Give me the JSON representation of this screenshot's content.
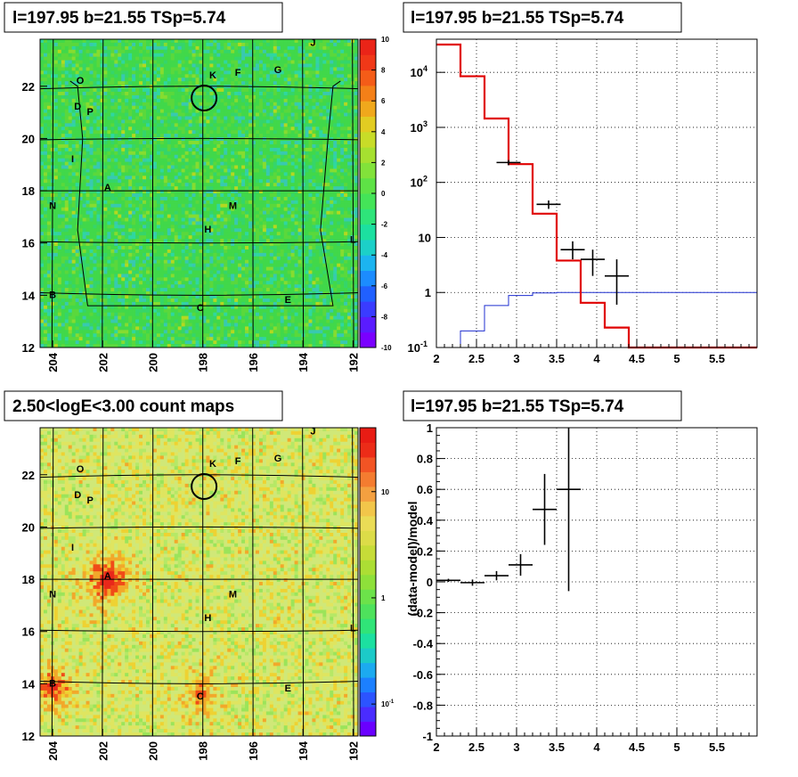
{
  "colors": {
    "map_green": "#3fd64a",
    "count_map": "#d7e86a",
    "model_line": "#e00000",
    "data_points": "#000000",
    "bkg_line": "#1f2fd0",
    "frame": "#000000"
  },
  "panels": {
    "tl": {
      "title": "l=197.95 b=21.55 TSp=5.74",
      "kind": "significance map",
      "xticks": [
        "204",
        "202",
        "200",
        "198",
        "196",
        "194",
        "192"
      ],
      "yticks": [
        "22",
        "20",
        "18",
        "16",
        "14",
        "12"
      ],
      "colorbar_ticks": [
        "10",
        "8",
        "6",
        "4",
        "2",
        "0",
        "-2",
        "-4",
        "-6",
        "-8",
        "-10"
      ],
      "color_scale": "linear"
    },
    "bl": {
      "title": "2.50<logE<3.00 count maps",
      "kind": "count map",
      "xticks": [
        "204",
        "202",
        "200",
        "198",
        "196",
        "194",
        "192"
      ],
      "yticks": [
        "22",
        "20",
        "18",
        "16",
        "14",
        "12"
      ],
      "colorbar_ticks": [
        "10",
        "1",
        "10-1"
      ],
      "color_scale": "log"
    },
    "tr": {
      "title": "l=197.95 b=21.55 TSp=5.74"
    },
    "br": {
      "title": "l=197.95 b=21.55 TSp=5.74",
      "ylabel": "(data-model)/model"
    }
  },
  "sources": [
    {
      "name": "J",
      "l": 193.6,
      "b": 23.55
    },
    {
      "name": "K",
      "l": 197.6,
      "b": 22.3
    },
    {
      "name": "F",
      "l": 196.6,
      "b": 22.4
    },
    {
      "name": "G",
      "l": 195.0,
      "b": 22.5
    },
    {
      "name": "O",
      "l": 202.9,
      "b": 22.1
    },
    {
      "name": "D",
      "l": 203.0,
      "b": 21.1
    },
    {
      "name": "P",
      "l": 202.5,
      "b": 20.9
    },
    {
      "name": "I",
      "l": 203.2,
      "b": 19.1
    },
    {
      "name": "A",
      "l": 201.8,
      "b": 18.0
    },
    {
      "name": "N",
      "l": 204.0,
      "b": 17.3
    },
    {
      "name": "M",
      "l": 196.8,
      "b": 17.3
    },
    {
      "name": "H",
      "l": 197.8,
      "b": 16.4
    },
    {
      "name": "L",
      "l": 192.0,
      "b": 16.0
    },
    {
      "name": "B",
      "l": 204.0,
      "b": 13.9
    },
    {
      "name": "E",
      "l": 194.6,
      "b": 13.7
    },
    {
      "name": "C",
      "l": 198.1,
      "b": 13.4
    }
  ],
  "roi_circle": {
    "l": 197.95,
    "b": 21.55
  },
  "chart_data": [
    {
      "type": "heatmap",
      "title": "l=197.95 b=21.55 TSp=5.74",
      "x_axis": "galactic longitude l (deg), decreasing to the right",
      "xlim": [
        204.5,
        191.8
      ],
      "ylim": [
        12,
        23.8
      ],
      "z_range": [
        -10,
        10
      ]
    },
    {
      "type": "line",
      "title": "l=197.95 b=21.55 TSp=5.74",
      "yscale": "log",
      "xlim": [
        2,
        6
      ],
      "ylim": [
        0.1,
        40000
      ],
      "xticks": [
        "2",
        "2.5",
        "3",
        "3.5",
        "4",
        "4.5",
        "5",
        "5.5"
      ],
      "yticks": [
        "10^4",
        "10^3",
        "10^2",
        "10",
        "1",
        "10^-1"
      ],
      "grid": true,
      "data_points": [
        {
          "x": 2.9,
          "y": 230,
          "xerr": 0.15,
          "ylo": 205,
          "yhi": 255
        },
        {
          "x": 3.4,
          "y": 40,
          "xerr": 0.15,
          "ylo": 33,
          "yhi": 47
        },
        {
          "x": 3.7,
          "y": 6,
          "xerr": 0.15,
          "ylo": 4,
          "yhi": 8.5
        },
        {
          "x": 3.95,
          "y": 4,
          "xerr": 0.15,
          "ylo": 2,
          "yhi": 6
        },
        {
          "x": 4.25,
          "y": 2,
          "xerr": 0.15,
          "ylo": 0.6,
          "yhi": 4
        }
      ],
      "model_hist": {
        "edges": [
          2.0,
          2.3,
          2.6,
          2.9,
          3.2,
          3.5,
          3.8,
          4.1,
          4.4,
          6.0
        ],
        "values": [
          32000,
          8500,
          1450,
          215,
          27,
          3.8,
          0.65,
          0.23,
          0.1
        ]
      },
      "background_hist": {
        "edges": [
          2.3,
          2.6,
          2.9,
          3.2,
          3.5,
          6.0
        ],
        "values": [
          0.2,
          0.58,
          0.88,
          0.98,
          1.0
        ]
      }
    },
    {
      "type": "heatmap",
      "title": "2.50<logE<3.00 count maps",
      "xlim": [
        204.5,
        191.8
      ],
      "ylim": [
        12,
        23.8
      ],
      "z_scale": "log",
      "z_range": [
        0.05,
        40
      ]
    },
    {
      "type": "scatter",
      "title": "l=197.95 b=21.55 TSp=5.74",
      "ylabel": "(data-model)/model",
      "xlim": [
        2,
        6
      ],
      "ylim": [
        -1,
        1
      ],
      "xticks": [
        "2",
        "2.5",
        "3",
        "3.5",
        "4",
        "4.5",
        "5",
        "5.5"
      ],
      "yticks": [
        "1",
        "0.8",
        "0.6",
        "0.4",
        "0.2",
        "0",
        "-0.2",
        "-0.4",
        "-0.6",
        "-0.8",
        "-1"
      ],
      "grid": true,
      "points": [
        {
          "x": 2.15,
          "y": 0.01,
          "xerr": 0.15,
          "yerr": 0.01
        },
        {
          "x": 2.45,
          "y": -0.005,
          "xerr": 0.15,
          "yerr": 0.02
        },
        {
          "x": 2.75,
          "y": 0.04,
          "xerr": 0.15,
          "yerr": 0.03
        },
        {
          "x": 3.05,
          "y": 0.11,
          "xerr": 0.15,
          "yerr": 0.07
        },
        {
          "x": 3.35,
          "y": 0.47,
          "xerr": 0.15,
          "yerr": 0.23
        },
        {
          "x": 3.65,
          "y": 0.6,
          "xerr": 0.15,
          "yerr": 0.66
        }
      ]
    }
  ]
}
